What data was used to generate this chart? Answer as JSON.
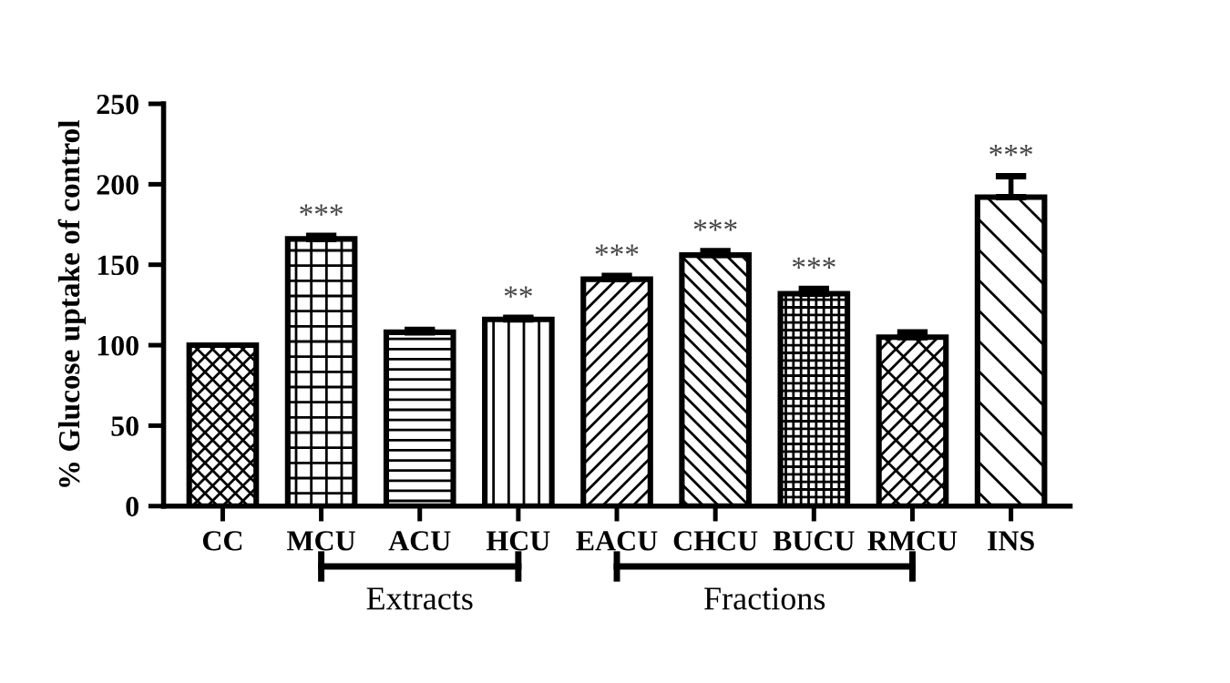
{
  "chart_data": {
    "type": "bar",
    "ylabel": "% Glucose uptake of control",
    "categories": [
      "CC",
      "MCU",
      "ACU",
      "HCU",
      "EACU",
      "CHCU",
      "BUCU",
      "RMCU",
      "INS"
    ],
    "values": [
      100,
      166,
      108,
      116,
      141,
      156,
      132,
      105,
      192
    ],
    "errors": [
      null,
      2,
      1.5,
      1,
      2,
      2.5,
      3,
      3,
      13
    ],
    "ylim": [
      0,
      250
    ],
    "yticks": [
      0,
      50,
      100,
      150,
      200,
      250
    ],
    "grid": false,
    "legend": false,
    "annotations": [
      {
        "text": "***",
        "x": "MCU",
        "y": 168
      },
      {
        "text": "**",
        "x": "HCU",
        "y": 117
      },
      {
        "text": "***",
        "x": "EACU",
        "y": 143
      },
      {
        "text": "***",
        "x": "CHCU",
        "y": 158.5
      },
      {
        "text": "***",
        "x": "BUCU",
        "y": 135
      },
      {
        "text": "***",
        "x": "INS",
        "y": 205
      },
      "Extracts",
      "Fractions"
    ]
  }
}
